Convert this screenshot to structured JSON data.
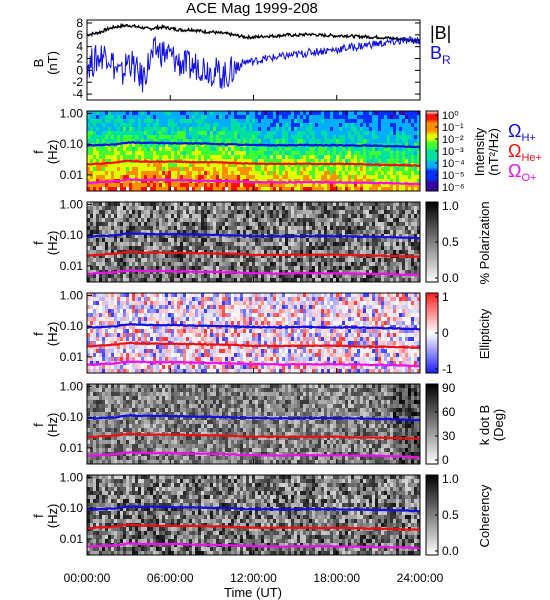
{
  "title": "ACE Mag 1999-208",
  "xlabel": "Time (UT)",
  "x_ticks": [
    "00:00:00",
    "06:00:00",
    "12:00:00",
    "18:00:00",
    "24:00:00"
  ],
  "colors": {
    "b_total": "#000000",
    "b_radial": "#1010e0",
    "omega_h": "#1010e0",
    "omega_he": "#ee1010",
    "omega_o": "#ee10ee"
  },
  "legend": {
    "total_label": "|B|",
    "radial_label": "B",
    "radial_sub": "R"
  },
  "gyro_legend": [
    {
      "label": "Ω",
      "sub": "H+",
      "color": "#1010e0"
    },
    {
      "label": "Ω",
      "sub": "He+",
      "color": "#ee1010"
    },
    {
      "label": "Ω",
      "sub": "O+",
      "color": "#ee10ee"
    }
  ],
  "chart_data": [
    {
      "type": "line",
      "ylabel": "B",
      "yunit": "(nT)",
      "ylim": [
        -5,
        8.5
      ],
      "y_ticks": [
        "8",
        "6",
        "4",
        "2",
        "0",
        "-2",
        "-4"
      ],
      "x_range_hours": [
        0,
        24
      ],
      "series": [
        {
          "name": "|B|",
          "x": [
            0,
            0.5,
            1,
            1.5,
            2,
            2.5,
            3,
            3.5,
            4,
            4.5,
            5,
            5.5,
            6,
            6.5,
            7,
            7.5,
            8,
            8.5,
            9,
            9.5,
            10,
            10.5,
            11,
            11.5,
            12,
            12.5,
            13,
            13.5,
            14,
            14.5,
            15,
            15.5,
            16,
            16.5,
            17,
            17.5,
            18,
            18.5,
            19,
            19.5,
            20,
            20.5,
            21,
            21.5,
            22,
            22.5,
            23,
            23.5,
            24
          ],
          "y": [
            6.0,
            6.2,
            6.5,
            7.0,
            7.3,
            7.5,
            7.6,
            7.4,
            7.2,
            7.0,
            7.2,
            7.3,
            7.1,
            6.9,
            6.8,
            6.9,
            6.7,
            6.5,
            6.5,
            6.3,
            6.2,
            6.0,
            5.8,
            5.6,
            5.6,
            5.7,
            5.8,
            5.8,
            5.9,
            6.0,
            5.9,
            6.0,
            6.1,
            6.0,
            5.9,
            5.9,
            5.8,
            5.9,
            5.8,
            5.7,
            5.7,
            5.6,
            5.6,
            5.5,
            5.4,
            5.3,
            5.2,
            5.1,
            5.0
          ]
        },
        {
          "name": "B_R",
          "x": [
            0,
            0.5,
            1,
            1.5,
            2,
            2.5,
            3,
            3.5,
            4,
            4.5,
            5,
            5.5,
            6,
            6.5,
            7,
            7.5,
            8,
            8.5,
            9,
            9.5,
            10,
            10.5,
            11,
            11.5,
            12,
            12.5,
            13,
            13.5,
            14,
            14.5,
            15,
            15.5,
            16,
            16.5,
            17,
            17.5,
            18,
            18.5,
            19,
            19.5,
            20,
            20.5,
            21,
            21.5,
            22,
            22.5,
            23,
            23.5,
            24
          ],
          "y": [
            1.0,
            1.5,
            2.5,
            3.0,
            0.5,
            -1.0,
            2.0,
            0.0,
            -1.5,
            1.5,
            3.5,
            3.0,
            2.5,
            1.5,
            1.0,
            0.5,
            1.0,
            0.5,
            0.0,
            -0.5,
            -1.0,
            0.0,
            1.0,
            1.5,
            1.5,
            1.8,
            2.0,
            2.2,
            2.3,
            2.5,
            2.6,
            2.8,
            3.0,
            3.2,
            3.3,
            3.4,
            3.5,
            3.7,
            3.9,
            4.0,
            4.2,
            4.4,
            4.5,
            4.6,
            4.8,
            4.9,
            5.0,
            5.1,
            5.2
          ]
        }
      ]
    },
    {
      "type": "heatmap",
      "ylabel": "f",
      "yunit": "(Hz)",
      "ylim_hz": [
        0.003,
        1.2
      ],
      "y_scale": "log",
      "y_ticks": [
        "1.00",
        "0.10",
        "0.01"
      ],
      "colorbar": {
        "label": "Intensity",
        "unit": "(nT²/Hz)",
        "ticks": [
          "10⁰",
          "10⁻¹",
          "10⁻²",
          "10⁻³",
          "10⁻⁴",
          "10⁻⁵",
          "10⁻⁶"
        ],
        "colormap": "rainbow"
      },
      "overlay_lines": [
        "Ω_H+",
        "Ω_He+",
        "Ω_O+"
      ]
    },
    {
      "type": "heatmap",
      "ylabel": "f",
      "yunit": "(Hz)",
      "ylim_hz": [
        0.003,
        1.2
      ],
      "y_scale": "log",
      "y_ticks": [
        "1.00",
        "0.10",
        "0.01"
      ],
      "colorbar": {
        "label": "% Polarization",
        "ticks": [
          "1.0",
          "0.5",
          "0.0"
        ],
        "colormap": "gray"
      }
    },
    {
      "type": "heatmap",
      "ylabel": "f",
      "yunit": "(Hz)",
      "ylim_hz": [
        0.003,
        1.2
      ],
      "y_scale": "log",
      "y_ticks": [
        "1.00",
        "0.10",
        "0.01"
      ],
      "colorbar": {
        "label": "Ellipticity",
        "ticks": [
          "1",
          "0",
          "-1"
        ],
        "colormap": "blue-white-red"
      }
    },
    {
      "type": "heatmap",
      "ylabel": "f",
      "yunit": "(Hz)",
      "ylim_hz": [
        0.003,
        1.2
      ],
      "y_scale": "log",
      "y_ticks": [
        "1.00",
        "0.10",
        "0.01"
      ],
      "colorbar": {
        "label": "k dot B",
        "unit": "(Deg)",
        "ticks": [
          "90",
          "60",
          "30",
          "0"
        ],
        "colormap": "gray"
      }
    },
    {
      "type": "heatmap",
      "ylabel": "f",
      "yunit": "(Hz)",
      "ylim_hz": [
        0.003,
        1.2
      ],
      "y_scale": "log",
      "y_ticks": [
        "1.00",
        "0.10",
        "0.01"
      ],
      "colorbar": {
        "label": "Coherency",
        "ticks": [
          "1.0",
          "0.5",
          "0.0"
        ],
        "colormap": "gray"
      }
    }
  ],
  "gyrofrequencies_hz": {
    "x_hours": [
      0,
      2,
      3,
      4,
      6,
      8,
      10,
      12,
      14,
      16,
      18,
      20,
      22,
      24
    ],
    "H+": [
      0.09,
      0.098,
      0.115,
      0.11,
      0.109,
      0.105,
      0.1,
      0.093,
      0.092,
      0.094,
      0.092,
      0.09,
      0.086,
      0.08
    ],
    "He+": [
      0.022,
      0.025,
      0.029,
      0.027,
      0.027,
      0.026,
      0.025,
      0.023,
      0.023,
      0.023,
      0.023,
      0.022,
      0.021,
      0.02
    ],
    "O+": [
      0.0055,
      0.0062,
      0.0071,
      0.0068,
      0.0068,
      0.0065,
      0.0063,
      0.0058,
      0.0057,
      0.0058,
      0.0057,
      0.0056,
      0.0054,
      0.005
    ]
  }
}
